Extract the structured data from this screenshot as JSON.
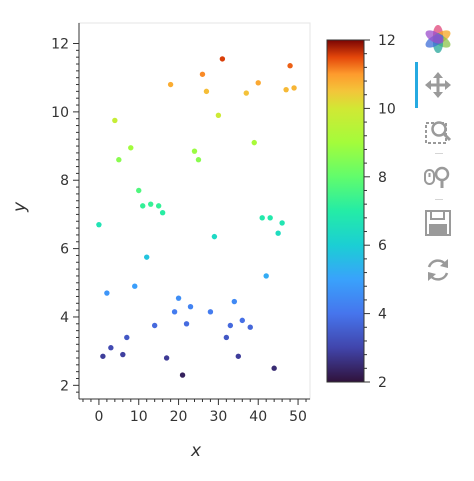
{
  "chart_data": {
    "type": "scatter",
    "xlabel": "x",
    "ylabel": "y",
    "xlim": [
      -5,
      53
    ],
    "ylim": [
      1.6,
      12.6
    ],
    "x_ticks": [
      0,
      10,
      20,
      30,
      40,
      50
    ],
    "y_ticks": [
      2,
      4,
      6,
      8,
      10,
      12
    ],
    "colorbar": {
      "palette": "Turbo",
      "range": [
        2,
        12
      ],
      "ticks": [
        2,
        4,
        6,
        8,
        10,
        12
      ]
    },
    "points": [
      {
        "x": 0,
        "y": 6.7
      },
      {
        "x": 1,
        "y": 2.85
      },
      {
        "x": 2,
        "y": 4.7
      },
      {
        "x": 3,
        "y": 3.1
      },
      {
        "x": 4,
        "y": 9.75
      },
      {
        "x": 5,
        "y": 8.6
      },
      {
        "x": 6,
        "y": 2.9
      },
      {
        "x": 7,
        "y": 3.4
      },
      {
        "x": 8,
        "y": 8.95
      },
      {
        "x": 9,
        "y": 4.9
      },
      {
        "x": 10,
        "y": 7.7
      },
      {
        "x": 11,
        "y": 7.25
      },
      {
        "x": 12,
        "y": 5.75
      },
      {
        "x": 13,
        "y": 7.3
      },
      {
        "x": 14,
        "y": 3.75
      },
      {
        "x": 15,
        "y": 7.25
      },
      {
        "x": 16,
        "y": 7.05
      },
      {
        "x": 17,
        "y": 2.8
      },
      {
        "x": 18,
        "y": 10.8
      },
      {
        "x": 19,
        "y": 4.15
      },
      {
        "x": 20,
        "y": 4.55
      },
      {
        "x": 21,
        "y": 2.3
      },
      {
        "x": 22,
        "y": 3.8
      },
      {
        "x": 23,
        "y": 4.3
      },
      {
        "x": 24,
        "y": 8.85
      },
      {
        "x": 25,
        "y": 8.6
      },
      {
        "x": 26,
        "y": 11.1
      },
      {
        "x": 27,
        "y": 10.6
      },
      {
        "x": 28,
        "y": 4.15
      },
      {
        "x": 29,
        "y": 6.35
      },
      {
        "x": 30,
        "y": 9.9
      },
      {
        "x": 31,
        "y": 11.55
      },
      {
        "x": 32,
        "y": 3.4
      },
      {
        "x": 33,
        "y": 3.75
      },
      {
        "x": 34,
        "y": 4.45
      },
      {
        "x": 35,
        "y": 2.85
      },
      {
        "x": 36,
        "y": 3.9
      },
      {
        "x": 37,
        "y": 10.55
      },
      {
        "x": 38,
        "y": 3.7
      },
      {
        "x": 39,
        "y": 9.1
      },
      {
        "x": 40,
        "y": 10.85
      },
      {
        "x": 41,
        "y": 6.9
      },
      {
        "x": 42,
        "y": 5.2
      },
      {
        "x": 43,
        "y": 6.9
      },
      {
        "x": 44,
        "y": 2.5
      },
      {
        "x": 45,
        "y": 6.45
      },
      {
        "x": 46,
        "y": 6.75
      },
      {
        "x": 47,
        "y": 10.65
      },
      {
        "x": 48,
        "y": 11.35
      },
      {
        "x": 49,
        "y": 10.7
      }
    ]
  },
  "toolbar": {
    "tools": [
      {
        "name": "bokeh-logo",
        "interactive": false
      },
      {
        "name": "pan-tool",
        "interactive": true,
        "active": true
      },
      {
        "name": "box-zoom-tool",
        "interactive": true
      },
      {
        "name": "wheel-zoom-tool",
        "interactive": true
      },
      {
        "name": "save-tool",
        "interactive": true
      },
      {
        "name": "reset-tool",
        "interactive": true
      }
    ],
    "colors": {
      "active": "#26aae1",
      "icon": "#9a9a9a"
    }
  }
}
